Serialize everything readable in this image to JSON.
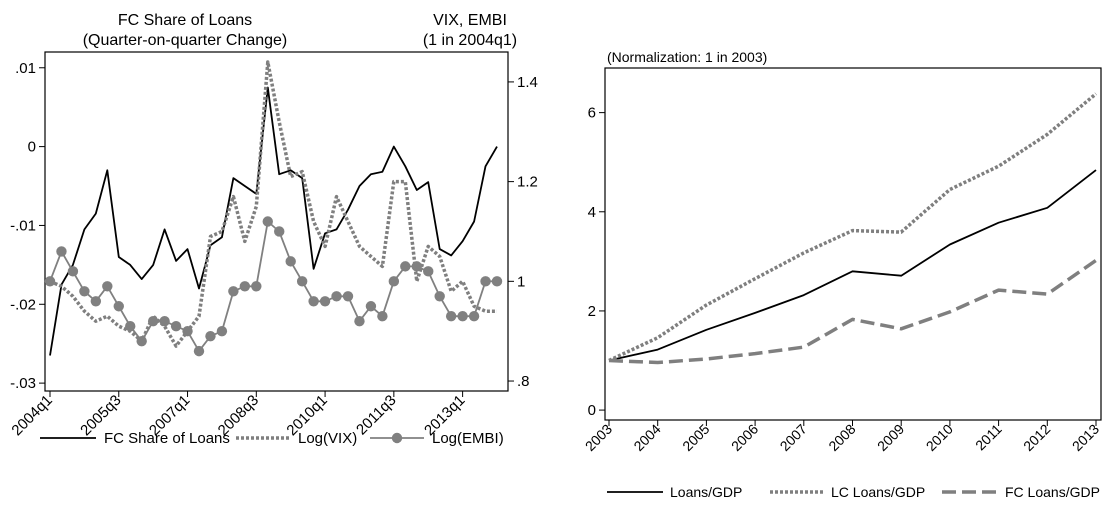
{
  "chart_data": [
    {
      "type": "line",
      "title_left": [
        "FC Share of Loans",
        "(Quarter-on-quarter Change)"
      ],
      "title_right": [
        "VIX, EMBI",
        "(1 in 2004q1)"
      ],
      "x_tick_labels": [
        "2004q1",
        "2005q3",
        "2007q1",
        "2008q3",
        "2010q1",
        "2011q3",
        "2013q1"
      ],
      "x_tick_positions": [
        0,
        6,
        12,
        18,
        24,
        30,
        36
      ],
      "x_range": [
        0,
        41
      ],
      "y_left": {
        "range": [
          -0.031,
          0.012
        ],
        "ticks": [
          -0.03,
          -0.02,
          -0.01,
          0,
          0.01
        ],
        "tick_labels": [
          "-.03",
          "-.02",
          "-.01",
          "0",
          ".01"
        ]
      },
      "y_right": {
        "range": [
          0.78,
          1.46
        ],
        "ticks": [
          0.8,
          1.0,
          1.2,
          1.4
        ],
        "tick_labels": [
          ".8",
          "1",
          "1.2",
          "1.4"
        ]
      },
      "series": [
        {
          "name": "FC Share of Loans",
          "axis": "left",
          "style": "solid",
          "color": "#000000",
          "values": [
            -0.0265,
            -0.0175,
            -0.015,
            -0.0105,
            -0.0085,
            -0.003,
            -0.014,
            -0.015,
            -0.0168,
            -0.015,
            -0.0105,
            -0.0145,
            -0.013,
            -0.018,
            -0.0125,
            -0.0115,
            -0.004,
            -0.005,
            -0.006,
            0.0075,
            -0.0035,
            -0.003,
            -0.004,
            -0.0155,
            -0.011,
            -0.0105,
            -0.008,
            -0.005,
            -0.0035,
            -0.0032,
            0.0,
            -0.0025,
            -0.0055,
            -0.0045,
            -0.013,
            -0.0138,
            -0.012,
            -0.0095,
            -0.0025,
            0.0
          ]
        },
        {
          "name": "Log(VIX)",
          "axis": "right",
          "style": "dotted",
          "color": "#7f7f7f",
          "values": [
            1.0,
            0.99,
            0.97,
            0.94,
            0.92,
            0.93,
            0.91,
            0.9,
            0.88,
            0.93,
            0.91,
            0.87,
            0.9,
            0.93,
            1.09,
            1.1,
            1.17,
            1.08,
            1.15,
            1.44,
            1.32,
            1.21,
            1.22,
            1.12,
            1.07,
            1.17,
            1.12,
            1.07,
            1.05,
            1.03,
            1.2,
            1.2,
            1.0,
            1.07,
            1.05,
            0.98,
            1.0,
            0.95,
            0.94,
            0.94
          ]
        },
        {
          "name": "Log(EMBI)",
          "axis": "right",
          "style": "markers",
          "color": "#808080",
          "values": [
            1.0,
            1.06,
            1.02,
            0.98,
            0.96,
            0.99,
            0.95,
            0.91,
            0.88,
            0.92,
            0.92,
            0.91,
            0.9,
            0.86,
            0.89,
            0.9,
            0.98,
            0.99,
            0.99,
            1.12,
            1.1,
            1.04,
            1.0,
            0.96,
            0.96,
            0.97,
            0.97,
            0.92,
            0.95,
            0.93,
            1.0,
            1.03,
            1.03,
            1.02,
            0.97,
            0.93,
            0.93,
            0.93,
            1.0,
            1.0
          ]
        }
      ],
      "legend": [
        "FC Share of Loans",
        "Log(VIX)",
        "Log(EMBI)"
      ],
      "legend_position": "bottom",
      "grid": false
    },
    {
      "type": "line",
      "title": "(Normalization: 1 in 2003)",
      "categories": [
        "2003",
        "2004",
        "2005",
        "2006",
        "2007",
        "2008",
        "2009",
        "2010",
        "2011",
        "2012",
        "2013"
      ],
      "y": {
        "range": [
          -0.2,
          6.9
        ],
        "ticks": [
          0,
          2,
          4,
          6
        ],
        "tick_labels": [
          "0",
          "2",
          "4",
          "6"
        ]
      },
      "series": [
        {
          "name": "Loans/GDP",
          "style": "solid",
          "color": "#000000",
          "values": [
            1.0,
            1.22,
            1.62,
            1.96,
            2.32,
            2.8,
            2.71,
            3.34,
            3.78,
            4.08,
            4.84
          ]
        },
        {
          "name": "LC Loans/GDP",
          "style": "dotted",
          "color": "#7f7f7f",
          "values": [
            1.0,
            1.46,
            2.12,
            2.65,
            3.17,
            3.62,
            3.59,
            4.45,
            4.92,
            5.56,
            6.38
          ]
        },
        {
          "name": "FC Loans/GDP",
          "style": "dashed",
          "color": "#7f7f7f",
          "values": [
            1.0,
            0.96,
            1.03,
            1.14,
            1.27,
            1.83,
            1.64,
            1.98,
            2.42,
            2.34,
            3.02
          ]
        }
      ],
      "legend": [
        "Loans/GDP",
        "LC Loans/GDP",
        "FC Loans/GDP"
      ],
      "legend_position": "bottom",
      "grid": false
    }
  ]
}
